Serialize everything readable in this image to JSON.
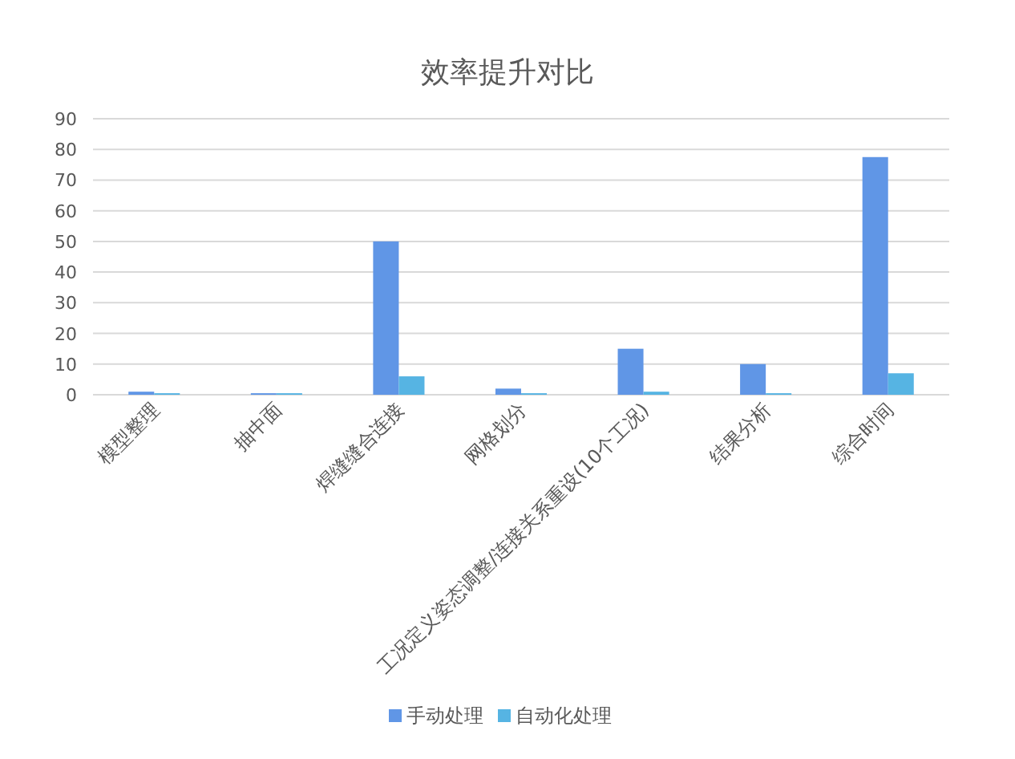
{
  "chart_data": {
    "type": "bar",
    "title": "效率提升对比",
    "categories": [
      "模型整理",
      "抽中面",
      "焊缝缝合连接",
      "网格划分",
      "工况定义姿态调整/连接关系重设(10个工况)",
      "结果分析",
      "综合时间"
    ],
    "series": [
      {
        "name": "手动处理",
        "color": "#6096e6",
        "values": [
          1,
          0.5,
          50,
          2,
          15,
          10,
          77.5
        ]
      },
      {
        "name": "自动化处理",
        "color": "#56b4e3",
        "values": [
          0.5,
          0.5,
          6,
          0.5,
          1,
          0.5,
          7
        ]
      }
    ],
    "ylim": [
      0,
      90
    ],
    "yticks": [
      0,
      10,
      20,
      30,
      40,
      50,
      60,
      70,
      80,
      90
    ],
    "grid": "y",
    "legend": "bottom"
  }
}
